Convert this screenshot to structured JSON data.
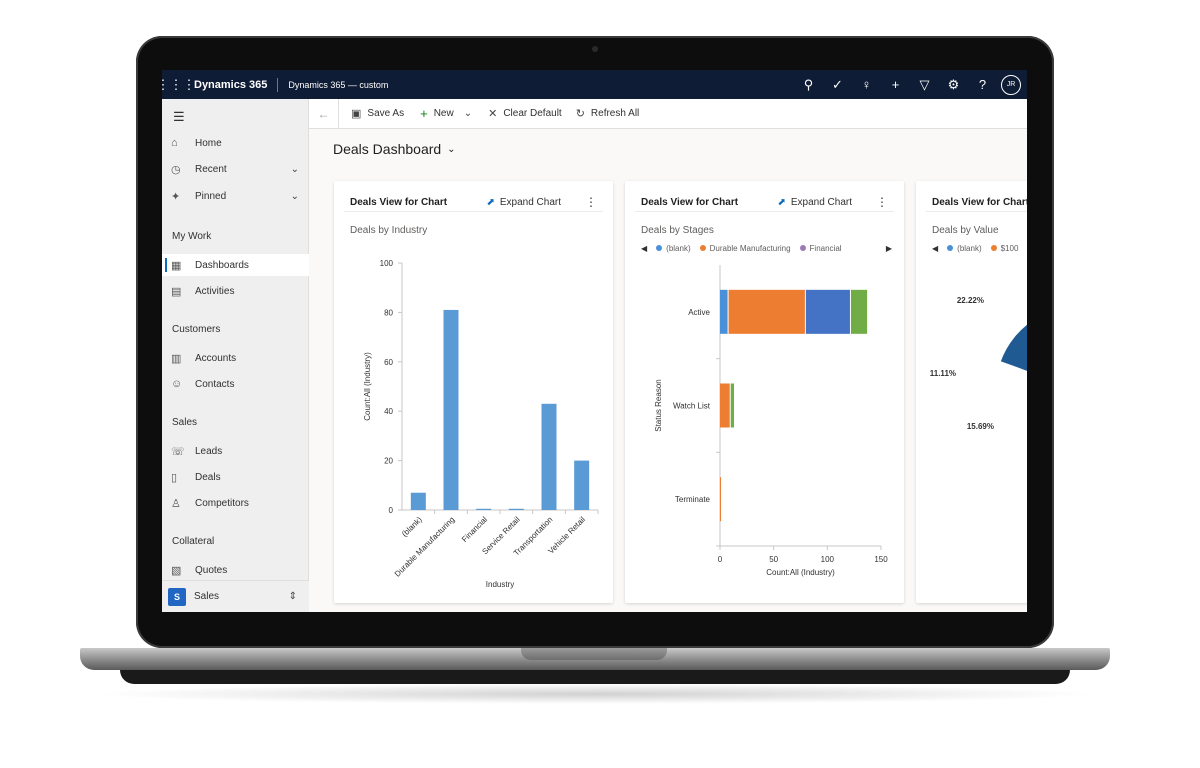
{
  "topbar": {
    "app_name": "Dynamics 365",
    "app_custom": "Dynamics 365 — custom",
    "icons": [
      "search-icon",
      "task-icon",
      "lightbulb-icon",
      "plus-icon",
      "filter-icon",
      "gear-icon",
      "help-icon"
    ],
    "avatar_initials": "JR"
  },
  "sidebar": {
    "items": [
      {
        "label": "Home",
        "icon": "home-icon"
      },
      {
        "label": "Recent",
        "icon": "clock-icon"
      },
      {
        "label": "Pinned",
        "icon": "pin-icon"
      }
    ],
    "sections": [
      {
        "title": "My Work",
        "items": [
          {
            "label": "Dashboards"
          },
          {
            "label": "Activities"
          }
        ]
      },
      {
        "title": "Customers",
        "items": [
          {
            "label": "Accounts"
          },
          {
            "label": "Contacts"
          }
        ]
      },
      {
        "title": "Sales",
        "items": [
          {
            "label": "Leads"
          },
          {
            "label": "Deals"
          },
          {
            "label": "Competitors"
          }
        ]
      },
      {
        "title": "Collateral",
        "items": [
          {
            "label": "Quotes"
          }
        ]
      }
    ],
    "area": {
      "badge": "S",
      "label": "Sales"
    }
  },
  "cmdbar": {
    "save_as": "Save As",
    "new": "New",
    "clear_default": "Clear Default",
    "refresh_all": "Refresh All"
  },
  "dashboard": {
    "title": "Deals Dashboard"
  },
  "cards": [
    {
      "title": "Deals View for Chart",
      "expand": "Expand Chart",
      "subtitle": "Deals by Industry"
    },
    {
      "title": "Deals View for Chart",
      "expand": "Expand Chart",
      "subtitle": "Deals by Stages"
    },
    {
      "title": "Deals View for Chart",
      "subtitle": "Deals by Value"
    }
  ],
  "chart_data": [
    {
      "type": "bar",
      "title": "Deals by Industry",
      "categories": [
        "(blank)",
        "Durable Manufacturing",
        "Financial",
        "Service Retail",
        "Transportation",
        "Vehicle Retail"
      ],
      "values": [
        7,
        81,
        0.5,
        0.5,
        43,
        20
      ],
      "xlabel": "Industry",
      "ylabel": "Count:All (Industry)",
      "ylim": [
        0,
        100
      ],
      "yticks": [
        0,
        20,
        40,
        60,
        80,
        100
      ],
      "color": "#5b9bd5"
    },
    {
      "type": "bar",
      "orientation": "horizontal",
      "stacked": true,
      "title": "Deals by Stages",
      "categories": [
        "Active",
        "Watch List",
        "Terminate"
      ],
      "series": [
        {
          "name": "(blank)",
          "color": "#4a90d9",
          "values": [
            8,
            0,
            0
          ]
        },
        {
          "name": "Durable Manufacturing",
          "color": "#ed7d31",
          "values": [
            72,
            10,
            1
          ]
        },
        {
          "name": "Financial",
          "color": "#9e7ab3",
          "values": [
            0,
            0,
            0
          ]
        },
        {
          "name": "",
          "color": "#4472c4",
          "values": [
            42,
            0,
            0
          ]
        },
        {
          "name": "",
          "color": "#70ad47",
          "values": [
            16,
            4,
            0
          ]
        }
      ],
      "xlabel": "Count:All (Industry)",
      "ylabel": "Status Reason",
      "xlim": [
        0,
        150
      ],
      "xticks": [
        0,
        50,
        100,
        150
      ]
    },
    {
      "type": "pie",
      "title": "Deals by Value",
      "legend": [
        {
          "name": "(blank)",
          "color": "#4a90d9"
        },
        {
          "name": "$100",
          "color": "#ed7d31"
        }
      ],
      "labels": [
        "22.22%",
        "11.11%",
        "15.69%"
      ],
      "slices": [
        {
          "value": 22.22,
          "color": "#1f5a93"
        },
        {
          "value": 11.11,
          "color": "#6aa84f"
        },
        {
          "value": 15.69,
          "color": "#3d73c9"
        }
      ]
    }
  ]
}
